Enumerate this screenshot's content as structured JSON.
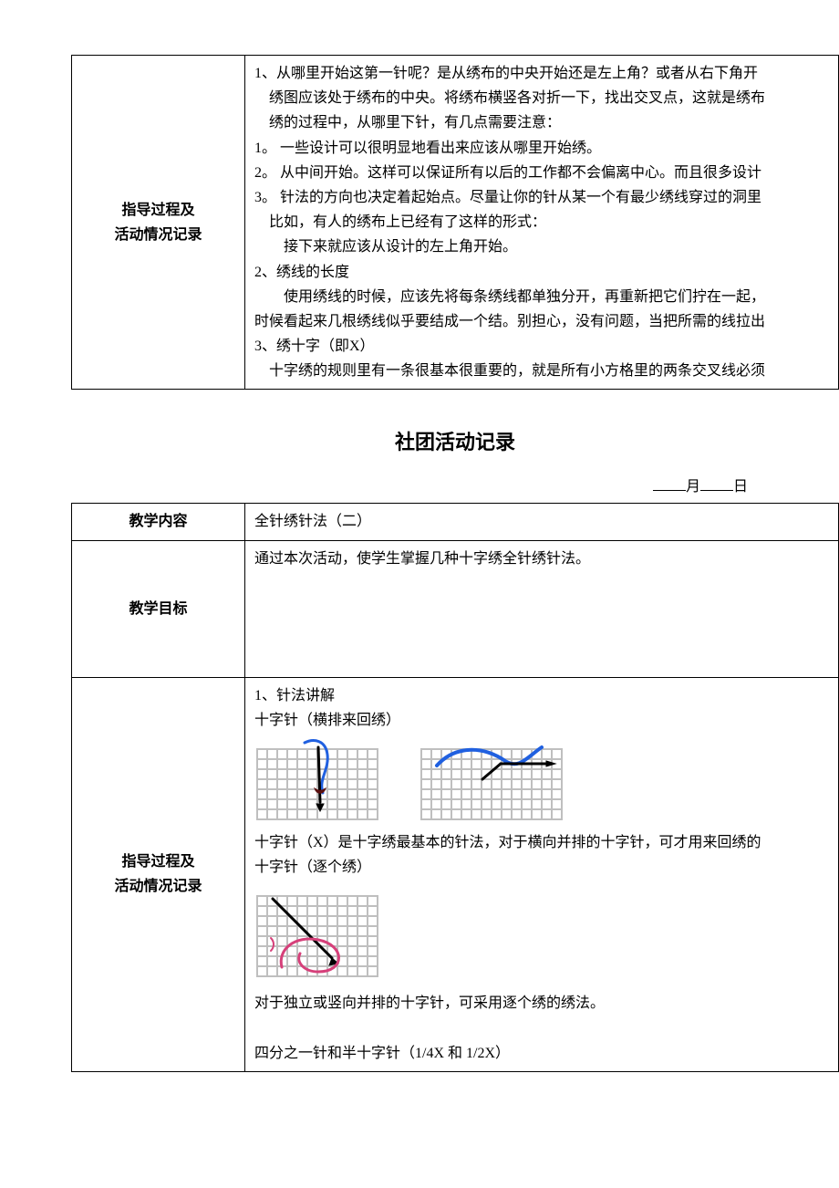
{
  "table1": {
    "label": "指导过程及\n活动情况记录",
    "lines": [
      "1、从哪里开始这第一针呢？是从绣布的中央开始还是左上角？或者从右下角开",
      "　绣图应该处于绣布的中央。将绣布横竖各对折一下，找出交叉点，这就是绣布",
      "　绣的过程中，从哪里下针，有几点需要注意：",
      "1。 一些设计可以很明显地看出来应该从哪里开始绣。",
      "2。 从中间开始。这样可以保证所有以后的工作都不会偏离中心。而且很多设计",
      "3。 针法的方向也决定着起始点。尽量让你的针从某一个有最少绣线穿过的洞里",
      "　比如，有人的绣布上已经有了这样的形式：",
      "　　接下来就应该从设计的左上角开始。",
      "2、绣线的长度",
      "　　使用绣线的时候，应该先将每条绣线都单独分开，再重新把它们拧在一起，",
      "时候看起来几根绣线似乎要结成一个结。别担心，没有问题，当把所需的线拉出",
      "3、绣十字（即X）",
      "　十字绣的规则里有一条很基本很重要的，就是所有小方格里的两条交叉线必须"
    ]
  },
  "title": "社团活动记录",
  "date": {
    "month": "月",
    "day": "日"
  },
  "table2": {
    "row1_label": "教学内容",
    "row1_content": "全针绣针法（二）",
    "row2_label": "教学目标",
    "row2_content": "通过本次活动，使学生掌握几种十字绣全针绣针法。",
    "row3_label": "指导过程及\n活动情况记录",
    "row3": {
      "l1": "1、针法讲解",
      "l2": "十字针（横排来回绣）",
      "l3": "十字针（X）是十字绣最基本的针法，对于横向并排的十字针，可才用来回绣的",
      "l4": "十字针（逐个绣）",
      "l5": "对于独立或竖向并排的十字针，可采用逐个绣的绣法。",
      "l6": "四分之一针和半十字针（1/4X 和 1/2X）"
    }
  },
  "colors": {
    "grid": "#bfbfbf",
    "blue": "#2060e0",
    "black": "#000000",
    "darkred": "#5a1010",
    "pink": "#d6407a"
  }
}
